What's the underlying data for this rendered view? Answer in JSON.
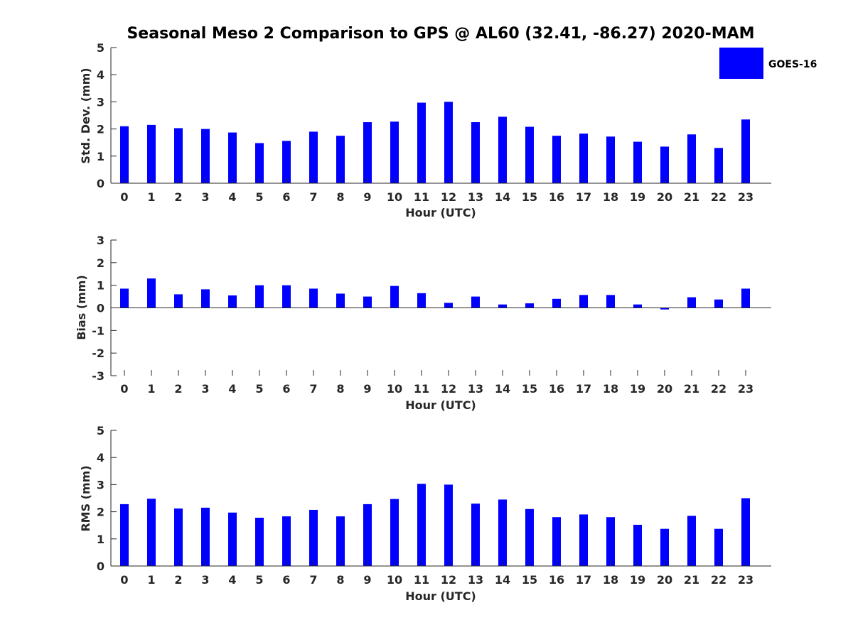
{
  "chart_data": [
    {
      "type": "bar",
      "title": "Seasonal Meso 2 Comparison to GPS @ AL60 (32.41, -86.27) 2020-MAM",
      "xlabel": "Hour (UTC)",
      "ylabel": "Std. Dev. (mm)",
      "ylim": [
        0,
        5
      ],
      "yticks": [
        "0",
        "1",
        "2",
        "3",
        "4",
        "5"
      ],
      "yticks_values": [
        0,
        1,
        2,
        3,
        4,
        5
      ],
      "categories": [
        "0",
        "1",
        "2",
        "3",
        "4",
        "5",
        "6",
        "7",
        "8",
        "9",
        "10",
        "11",
        "12",
        "13",
        "14",
        "15",
        "16",
        "17",
        "18",
        "19",
        "20",
        "21",
        "22",
        "23"
      ],
      "series": [
        {
          "name": "GOES-16",
          "color": "#0000ff",
          "values": [
            2.1,
            2.15,
            2.03,
            2.0,
            1.87,
            1.48,
            1.56,
            1.9,
            1.75,
            2.25,
            2.27,
            2.97,
            3.0,
            2.25,
            2.45,
            2.08,
            1.75,
            1.83,
            1.72,
            1.53,
            1.35,
            1.8,
            1.3,
            2.35
          ]
        }
      ],
      "legend": {
        "position": "top-right",
        "label": "GOES-16"
      }
    },
    {
      "type": "bar",
      "xlabel": "Hour (UTC)",
      "ylabel": "Bias (mm)",
      "ylim": [
        -3,
        3
      ],
      "yticks": [
        "-3",
        "-2",
        "-1",
        "0",
        "1",
        "2",
        "3"
      ],
      "yticks_values": [
        -3,
        -2,
        -1,
        0,
        1,
        2,
        3
      ],
      "categories": [
        "0",
        "1",
        "2",
        "3",
        "4",
        "5",
        "6",
        "7",
        "8",
        "9",
        "10",
        "11",
        "12",
        "13",
        "14",
        "15",
        "16",
        "17",
        "18",
        "19",
        "20",
        "21",
        "22",
        "23"
      ],
      "series": [
        {
          "name": "GOES-16",
          "color": "#0000ff",
          "values": [
            0.85,
            1.3,
            0.6,
            0.82,
            0.55,
            1.0,
            1.0,
            0.85,
            0.63,
            0.5,
            0.97,
            0.65,
            0.22,
            0.5,
            0.15,
            0.2,
            0.4,
            0.57,
            0.57,
            0.15,
            -0.07,
            0.47,
            0.37,
            0.85
          ]
        }
      ]
    },
    {
      "type": "bar",
      "xlabel": "Hour (UTC)",
      "ylabel": "RMS (mm)",
      "ylim": [
        0,
        5
      ],
      "yticks": [
        "0",
        "1",
        "2",
        "3",
        "4",
        "5"
      ],
      "yticks_values": [
        0,
        1,
        2,
        3,
        4,
        5
      ],
      "categories": [
        "0",
        "1",
        "2",
        "3",
        "4",
        "5",
        "6",
        "7",
        "8",
        "9",
        "10",
        "11",
        "12",
        "13",
        "14",
        "15",
        "16",
        "17",
        "18",
        "19",
        "20",
        "21",
        "22",
        "23"
      ],
      "series": [
        {
          "name": "GOES-16",
          "color": "#0000ff",
          "values": [
            2.28,
            2.48,
            2.12,
            2.15,
            1.97,
            1.78,
            1.83,
            2.07,
            1.83,
            2.28,
            2.47,
            3.03,
            3.0,
            2.3,
            2.45,
            2.1,
            1.8,
            1.9,
            1.8,
            1.52,
            1.37,
            1.85,
            1.37,
            2.5
          ]
        }
      ]
    }
  ]
}
